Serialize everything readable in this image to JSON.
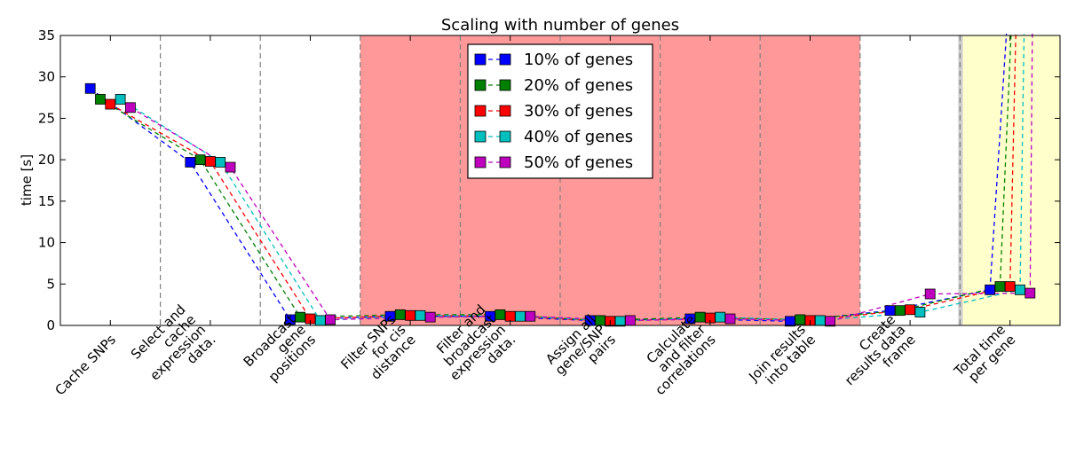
{
  "chart_data": {
    "type": "line",
    "title": "Scaling with number of genes",
    "ylabel": "time [s]",
    "xlabel": "",
    "ylim": [
      0,
      35
    ],
    "yticks": [
      0,
      5,
      10,
      15,
      20,
      25,
      30,
      35
    ],
    "grid": false,
    "legend_position": "top-center",
    "categories": [
      "Cache SNPs",
      "Select and cache expression data.",
      "Broadcast gene positions",
      "Filter SNPs for cis distance",
      "Filter and broadcast expression data.",
      "Assign all gene/SNP pairs",
      "Calculate and filter correlations",
      "Join results into table",
      "Create results data frame",
      "Total time per gene"
    ],
    "category_label_lines": [
      [
        "Cache SNPs"
      ],
      [
        "Select and",
        "cache",
        "expression",
        "data."
      ],
      [
        "Broadcast",
        "gene",
        "positions"
      ],
      [
        "Filter SNPs",
        "for cis",
        "distance"
      ],
      [
        "Filter and",
        "broadcast",
        "expression",
        "data."
      ],
      [
        "Assign all",
        "gene/SNP",
        "pairs"
      ],
      [
        "Calculate",
        "and filter",
        "correlations"
      ],
      [
        "Join results",
        "into table"
      ],
      [
        "Create",
        "results data",
        "frame"
      ],
      [
        "Total time",
        "per gene"
      ]
    ],
    "highlight_red_categories": [
      3,
      4,
      5,
      6,
      7
    ],
    "highlight_yellow_categories": [
      9
    ],
    "colors": {
      "red_band": "#ff9999",
      "yellow_band": "#ffffcc",
      "separator": "#cccccc",
      "divider": "#808080"
    },
    "series": [
      {
        "name": "10% of genes",
        "color": "#0000ff",
        "values": [
          28.6,
          19.7,
          0.7,
          1.1,
          1.1,
          0.6,
          0.8,
          0.5,
          1.8,
          4.3
        ],
        "line_end_beyond": 0.56
      },
      {
        "name": "20% of genes",
        "color": "#008000",
        "values": [
          27.3,
          20.0,
          1.0,
          1.3,
          1.3,
          0.6,
          1.0,
          0.7,
          1.8,
          4.7
        ],
        "line_end_beyond": 0.9
      },
      {
        "name": "30% of genes",
        "color": "#ff0000",
        "values": [
          26.7,
          19.8,
          0.8,
          1.2,
          1.1,
          0.5,
          0.9,
          0.6,
          1.9,
          4.7
        ],
        "line_end_beyond": 0.62
      },
      {
        "name": "40% of genes",
        "color": "#00bfbf",
        "values": [
          27.3,
          19.7,
          0.6,
          1.2,
          1.1,
          0.5,
          1.0,
          0.6,
          1.6,
          4.3
        ],
        "line_end_beyond": 0.5
      },
      {
        "name": "50% of genes",
        "color": "#bf00bf",
        "values": [
          26.3,
          19.1,
          0.7,
          1.0,
          1.1,
          0.6,
          0.8,
          0.5,
          3.8,
          3.9
        ],
        "line_end_beyond": 0.45
      }
    ]
  }
}
